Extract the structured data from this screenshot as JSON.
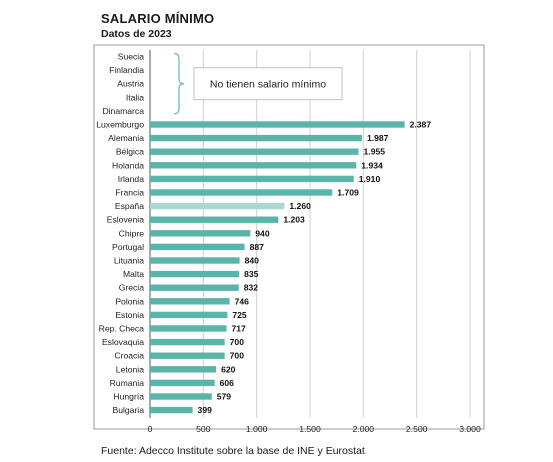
{
  "header": {
    "title": "SALARIO MÍNIMO",
    "subtitle": "Datos de 2023"
  },
  "footer": {
    "source": "Fuente: Adecco Institute sobre la base de INE y Eurostat"
  },
  "colors": {
    "bar": "#5bb4aa",
    "bar_highlight": "#a9d7d1",
    "brace": "#6fc1b6"
  },
  "chart_data": {
    "type": "bar",
    "orientation": "horizontal",
    "title": "SALARIO MÍNIMO",
    "subtitle": "Datos de 2023",
    "no_data_categories": [
      "Suecia",
      "Finlandia",
      "Austria",
      "Italia",
      "Dinamarca"
    ],
    "no_data_note": "No tienen salario mínimo",
    "categories": [
      "Luxemburgo",
      "Alemania",
      "Bélgica",
      "Holanda",
      "Irlanda",
      "Francia",
      "España",
      "Eslovenia",
      "Chipre",
      "Portugal",
      "Lituania",
      "Malta",
      "Grecia",
      "Polonia",
      "Estonia",
      "Rep. Checa",
      "Eslovaquia",
      "Croacia",
      "Letonia",
      "Rumania",
      "Hungría",
      "Bulgaria"
    ],
    "values": [
      2387,
      1987,
      1955,
      1934,
      1910,
      1709,
      1260,
      1203,
      940,
      887,
      840,
      835,
      832,
      746,
      725,
      717,
      700,
      700,
      620,
      606,
      579,
      399
    ],
    "value_labels": [
      "2.387",
      "1.987",
      "1.955",
      "1.934",
      "1.910",
      "1.709",
      "1.260",
      "1.203",
      "940",
      "887",
      "840",
      "835",
      "832",
      "746",
      "725",
      "717",
      "700",
      "700",
      "620",
      "606",
      "579",
      "399"
    ],
    "highlight": "España",
    "xlim": [
      0,
      3000
    ],
    "xticks": [
      0,
      500,
      1000,
      1500,
      2000,
      2500,
      3000
    ],
    "xtick_labels": [
      "0",
      "500",
      "1.000",
      "1.500",
      "2.000",
      "2.500",
      "3.000"
    ],
    "xlabel": "",
    "ylabel": "",
    "grid": "vertical",
    "legend": "none",
    "source": "Fuente: Adecco Institute sobre la base de INE y Eurostat"
  }
}
